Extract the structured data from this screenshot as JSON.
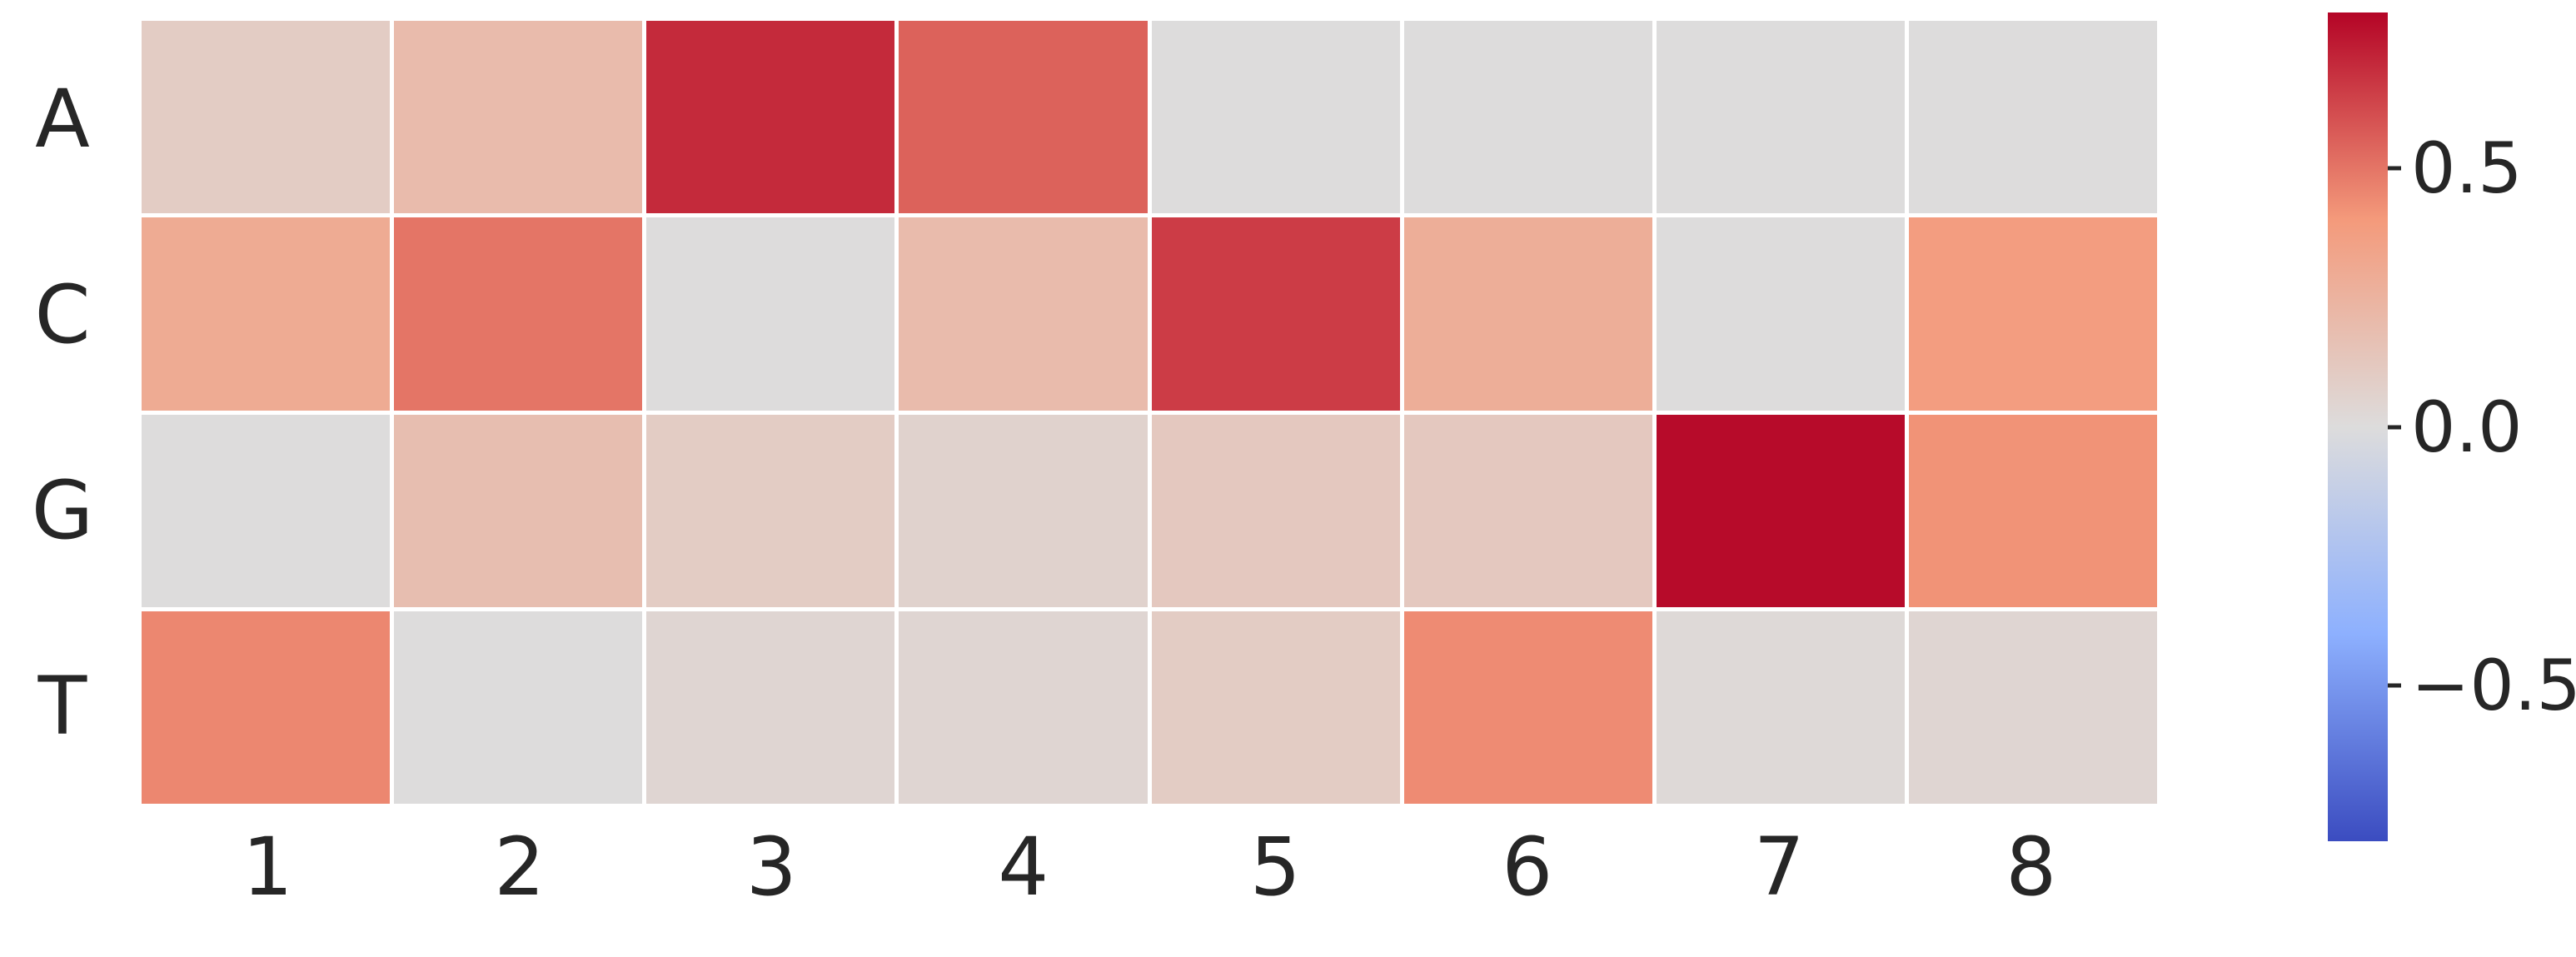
{
  "chart_data": {
    "type": "heatmap",
    "title": "",
    "rows": [
      "A",
      "C",
      "G",
      "T"
    ],
    "columns": [
      "1",
      "2",
      "3",
      "4",
      "5",
      "6",
      "7",
      "8"
    ],
    "values": [
      [
        0.1,
        0.2,
        0.7,
        0.55,
        0.0,
        0.0,
        0.0,
        0.0
      ],
      [
        0.3,
        0.5,
        0.0,
        0.2,
        0.65,
        0.28,
        0.0,
        0.38
      ],
      [
        0.0,
        0.18,
        0.1,
        0.06,
        0.12,
        0.12,
        0.78,
        0.42
      ],
      [
        0.45,
        0.0,
        0.04,
        0.04,
        0.1,
        0.44,
        0.02,
        0.04
      ]
    ],
    "vmin": -0.8,
    "vmax": 0.8,
    "colormap": {
      "name": "coolwarm",
      "anchors": [
        {
          "t": 0.0,
          "color": "#3B4CC0"
        },
        {
          "t": 0.25,
          "color": "#8DB0FE"
        },
        {
          "t": 0.5,
          "color": "#DDDCDC"
        },
        {
          "t": 0.75,
          "color": "#F49A7B"
        },
        {
          "t": 1.0,
          "color": "#B40426"
        }
      ]
    },
    "colorbar": {
      "position": "right",
      "ticks": [
        0.5,
        0.0,
        -0.5
      ],
      "tick_labels": [
        "0.5",
        "0.0",
        "−0.5"
      ]
    },
    "grid": "white-cell-borders",
    "legend": "none",
    "grid_color": "#FFFFFF",
    "text_color": "#262626"
  }
}
